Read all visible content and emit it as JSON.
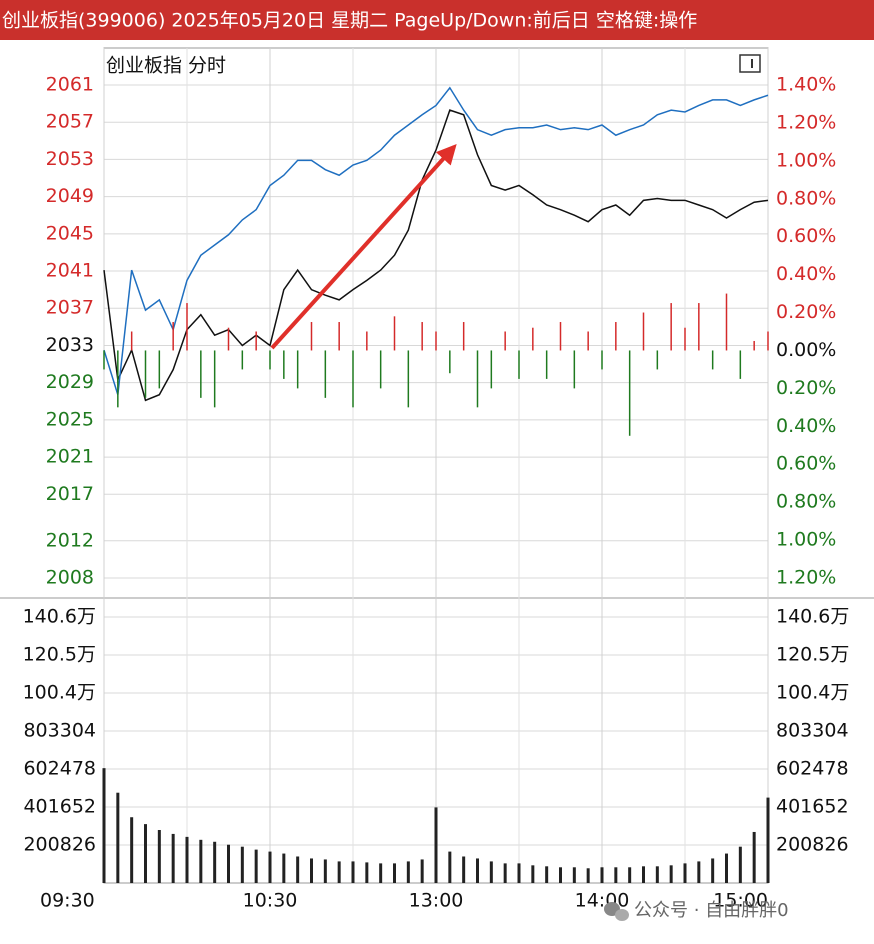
{
  "header": {
    "title": "创业板指(399006) 2025年05月20日 星期二 PageUp/Down:前后日 空格键:操作"
  },
  "watermark": "公众号 · 自由胖胖0",
  "chart_data": [
    {
      "type": "line",
      "title": "创业板指 分时",
      "x": [
        0,
        5,
        10,
        15,
        20,
        25,
        30,
        35,
        40,
        45,
        50,
        55,
        60,
        65,
        70,
        75,
        80,
        85,
        90,
        95,
        100,
        105,
        110,
        115,
        120,
        125,
        130,
        135,
        140,
        145,
        150,
        155,
        160,
        165,
        170,
        175,
        180,
        185,
        190,
        195,
        200,
        205,
        210,
        215,
        220,
        225,
        230,
        235,
        240
      ],
      "xlim": [
        0,
        240
      ],
      "ylim": [
        2008,
        2061
      ],
      "yticks": [
        2061,
        2057,
        2053,
        2049,
        2045,
        2041,
        2037,
        2033,
        2029,
        2025,
        2021,
        2017,
        2012,
        2008
      ],
      "y2lim": [
        -1.2,
        1.4
      ],
      "y2ticks": [
        {
          "value": 1.4,
          "label": "1.40%"
        },
        {
          "value": 1.2,
          "label": "1.20%"
        },
        {
          "value": 1.0,
          "label": "1.00%"
        },
        {
          "value": 0.8,
          "label": "0.80%"
        },
        {
          "value": 0.6,
          "label": "0.60%"
        },
        {
          "value": 0.4,
          "label": "0.40%"
        },
        {
          "value": 0.2,
          "label": "0.20%"
        },
        {
          "value": 0,
          "label": "0.00%"
        },
        {
          "value": -0.2,
          "label": "0.20%"
        },
        {
          "value": -0.4,
          "label": "0.40%"
        },
        {
          "value": -0.6,
          "label": "0.60%"
        },
        {
          "value": -0.8,
          "label": "0.80%"
        },
        {
          "value": -1.0,
          "label": "1.00%"
        },
        {
          "value": -1.2,
          "label": "1.20%"
        }
      ],
      "up_color": "#d42a2a",
      "flat_color": "#111111",
      "down_color": "#1f7a1f",
      "series": [
        {
          "color": "#111111",
          "values": [
            2041.1,
            2029.3,
            2032.5,
            2027.1,
            2027.7,
            2030.4,
            2034.7,
            2036.3,
            2034.1,
            2034.7,
            2033.0,
            2034.1,
            2033.0,
            2039.0,
            2041.1,
            2039.0,
            2038.4,
            2037.9,
            2039.0,
            2040.0,
            2041.1,
            2042.7,
            2045.4,
            2050.8,
            2054.0,
            2058.3,
            2057.8,
            2053.5,
            2050.2,
            2049.7,
            2050.2,
            2049.2,
            2048.1,
            2047.6,
            2047.0,
            2046.3,
            2047.6,
            2048.1,
            2047.0,
            2048.6,
            2048.8,
            2048.6,
            2048.6,
            2048.1,
            2047.6,
            2046.7,
            2047.6,
            2048.4,
            2048.6
          ]
        },
        {
          "color": "#1f6fc0",
          "values": [
            2032.5,
            2027.7,
            2041.1,
            2036.8,
            2037.9,
            2034.7,
            2040.0,
            2042.7,
            2043.8,
            2044.9,
            2046.5,
            2047.6,
            2050.2,
            2051.3,
            2052.9,
            2052.9,
            2051.9,
            2051.3,
            2052.4,
            2052.9,
            2054.0,
            2055.6,
            2056.7,
            2057.8,
            2058.8,
            2060.7,
            2058.3,
            2056.2,
            2055.6,
            2056.2,
            2056.4,
            2056.4,
            2056.7,
            2056.2,
            2056.4,
            2056.2,
            2056.7,
            2055.6,
            2056.2,
            2056.7,
            2057.8,
            2058.3,
            2058.1,
            2058.8,
            2059.4,
            2059.4,
            2058.8,
            2059.4,
            2059.9
          ]
        },
        {
          "type": "bar",
          "axis": "y2",
          "values": [
            -0.1,
            -0.3,
            0.1,
            -0.25,
            -0.2,
            0.15,
            0.25,
            -0.25,
            -0.3,
            0.12,
            -0.1,
            0.1,
            -0.1,
            -0.15,
            -0.2,
            0.15,
            -0.25,
            0.15,
            -0.3,
            0.1,
            -0.2,
            0.18,
            -0.3,
            0.15,
            0.1,
            -0.12,
            0.15,
            -0.3,
            -0.2,
            0.1,
            -0.15,
            0.12,
            -0.15,
            0.15,
            -0.2,
            0.1,
            -0.1,
            0.15,
            -0.45,
            0.2,
            -0.1,
            0.25,
            0.12,
            0.25,
            -0.1,
            0.3,
            -0.15,
            0.05,
            0.1
          ]
        }
      ]
    },
    {
      "type": "bar",
      "x": [
        0,
        5,
        10,
        15,
        20,
        25,
        30,
        35,
        40,
        45,
        50,
        55,
        60,
        65,
        70,
        75,
        80,
        85,
        90,
        95,
        100,
        105,
        110,
        115,
        120,
        125,
        130,
        135,
        140,
        145,
        150,
        155,
        160,
        165,
        170,
        175,
        180,
        185,
        190,
        195,
        200,
        205,
        210,
        215,
        220,
        225,
        230,
        235,
        240
      ],
      "xlim": [
        0,
        240
      ],
      "xticks": [
        {
          "value": 0,
          "label": "09:30"
        },
        {
          "value": 60,
          "label": "10:30"
        },
        {
          "value": 120,
          "label": "13:00"
        },
        {
          "value": 180,
          "label": "14:00"
        },
        {
          "value": 240,
          "label": "15:00"
        }
      ],
      "ylim": [
        0,
        1405782
      ],
      "yticks": [
        {
          "value": 1405782,
          "label": "140.6万"
        },
        {
          "value": 1204956,
          "label": "120.5万"
        },
        {
          "value": 1004130,
          "label": "100.4万"
        },
        803304,
        602478,
        401652,
        200826
      ],
      "color": "#222222",
      "values": [
        606900,
        477200,
        347600,
        311200,
        280100,
        259400,
        243800,
        228200,
        217900,
        202300,
        191900,
        176400,
        166000,
        155600,
        140100,
        129700,
        124500,
        114100,
        114100,
        108900,
        103700,
        103700,
        114100,
        124500,
        399400,
        166000,
        140100,
        129700,
        114100,
        103700,
        103700,
        93400,
        88200,
        83000,
        83000,
        77800,
        83000,
        83000,
        83000,
        88200,
        88200,
        93400,
        103700,
        114100,
        129700,
        155600,
        191900,
        269700,
        451300
      ]
    }
  ]
}
